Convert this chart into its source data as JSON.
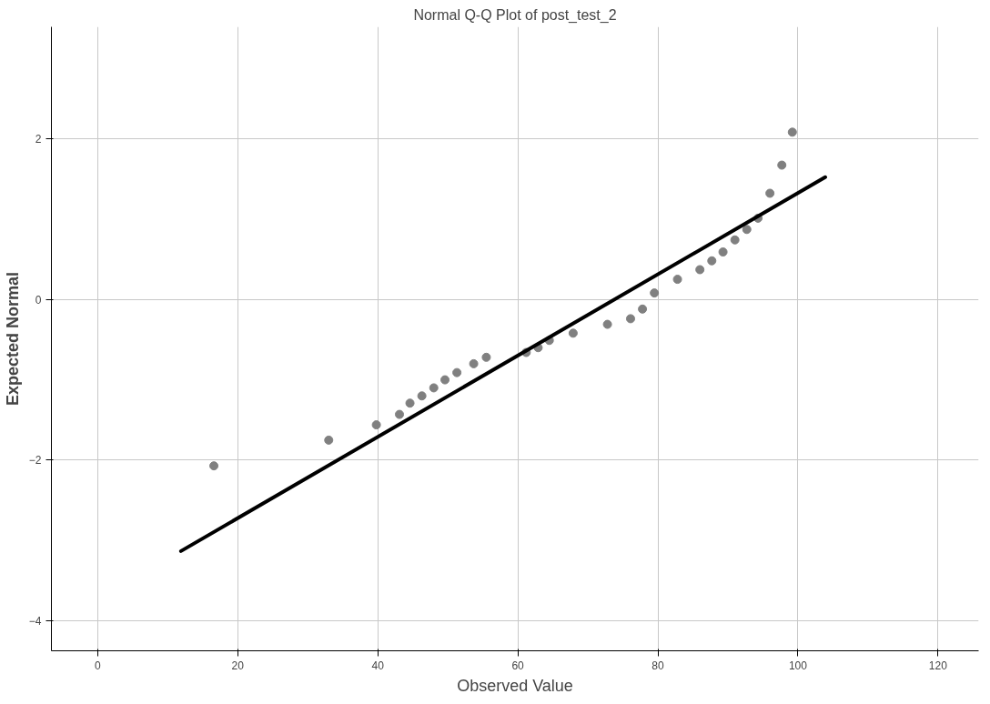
{
  "chart_data": {
    "type": "scatter",
    "title": "Normal Q-Q Plot of post_test_2",
    "xlabel": "Observed Value",
    "ylabel": "Expected Normal",
    "xlim": [
      -6.6,
      125.8
    ],
    "ylim": [
      -4.37,
      3.39
    ],
    "xticks": [
      0,
      20,
      40,
      60,
      80,
      100,
      120
    ],
    "yticks": [
      -4,
      -2,
      0,
      2
    ],
    "grid": true,
    "series": [
      {
        "marker": "circle",
        "color": "#808080",
        "x": [
          16.6,
          33.0,
          39.8,
          43.1,
          44.6,
          46.3,
          48.0,
          49.6,
          51.3,
          53.7,
          55.5,
          61.2,
          62.9,
          64.5,
          67.9,
          72.8,
          76.1,
          77.8,
          79.5,
          82.8,
          86.0,
          87.7,
          89.3,
          91.0,
          92.7,
          94.3,
          96.0,
          97.7,
          99.2
        ],
        "values": [
          -2.07,
          -1.75,
          -1.56,
          -1.43,
          -1.29,
          -1.2,
          -1.1,
          -1.0,
          -0.91,
          -0.8,
          -0.72,
          -0.66,
          -0.6,
          -0.51,
          -0.42,
          -0.31,
          -0.24,
          -0.12,
          0.08,
          0.25,
          0.37,
          0.48,
          0.59,
          0.74,
          0.87,
          1.01,
          1.32,
          1.67,
          2.08
        ]
      },
      {
        "type": "line",
        "marker": "none",
        "color": "#000000",
        "x": [
          11.9,
          103.9
        ],
        "values": [
          -3.13,
          1.52
        ]
      }
    ]
  }
}
